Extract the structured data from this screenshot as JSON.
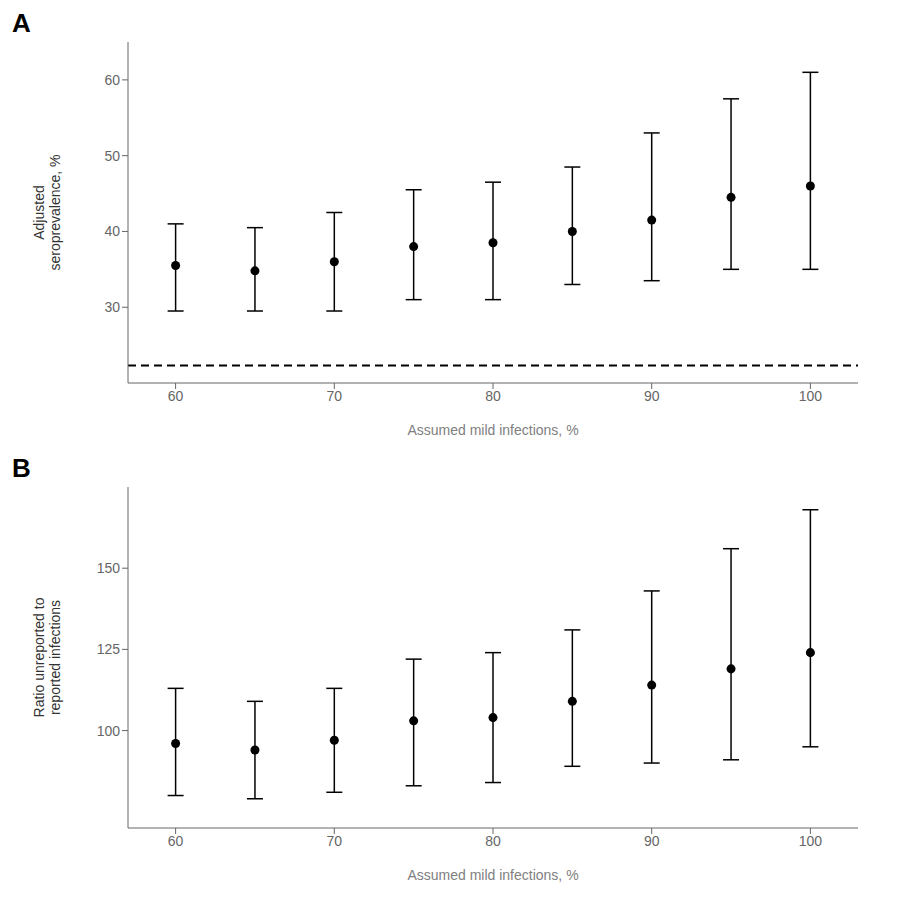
{
  "chart_data": [
    {
      "type": "scatter",
      "panel_label": "A",
      "x": [
        60,
        65,
        70,
        75,
        80,
        85,
        90,
        95,
        100
      ],
      "values": [
        35.5,
        34.8,
        36.0,
        38.0,
        38.5,
        40.0,
        41.5,
        44.5,
        46.0
      ],
      "ci_low": [
        29.5,
        29.5,
        29.5,
        31.0,
        31.0,
        33.0,
        33.5,
        35.0,
        35.0
      ],
      "ci_high": [
        41.0,
        40.5,
        42.5,
        45.5,
        46.5,
        48.5,
        53.0,
        57.5,
        61.0
      ],
      "reference_line": 22.3,
      "ylabel": "Adjusted\nseroprevalence, %",
      "xlabel": "Assumed mild infections, %",
      "xlim": [
        57,
        103
      ],
      "xticks": [
        60,
        70,
        80,
        90,
        100
      ],
      "ylim": [
        20,
        65
      ],
      "yticks": [
        30,
        40,
        50,
        60
      ],
      "color": "black",
      "marker": "circle",
      "grid": false
    },
    {
      "type": "scatter",
      "panel_label": "B",
      "x": [
        60,
        65,
        70,
        75,
        80,
        85,
        90,
        95,
        100
      ],
      "values": [
        96,
        94,
        97,
        103,
        104,
        109,
        114,
        119,
        124
      ],
      "ci_low": [
        80,
        79,
        81,
        83,
        84,
        89,
        90,
        91,
        95
      ],
      "ci_high": [
        113,
        109,
        113,
        122,
        124,
        131,
        143,
        156,
        168
      ],
      "ylabel": "Ratio unreported to\nreported infections",
      "xlabel": "Assumed mild infections, %",
      "xlim": [
        57,
        103
      ],
      "xticks": [
        60,
        70,
        80,
        90,
        100
      ],
      "ylim": [
        70,
        175
      ],
      "yticks": [
        100,
        125,
        150
      ],
      "color": "black",
      "marker": "circle",
      "grid": false
    }
  ]
}
